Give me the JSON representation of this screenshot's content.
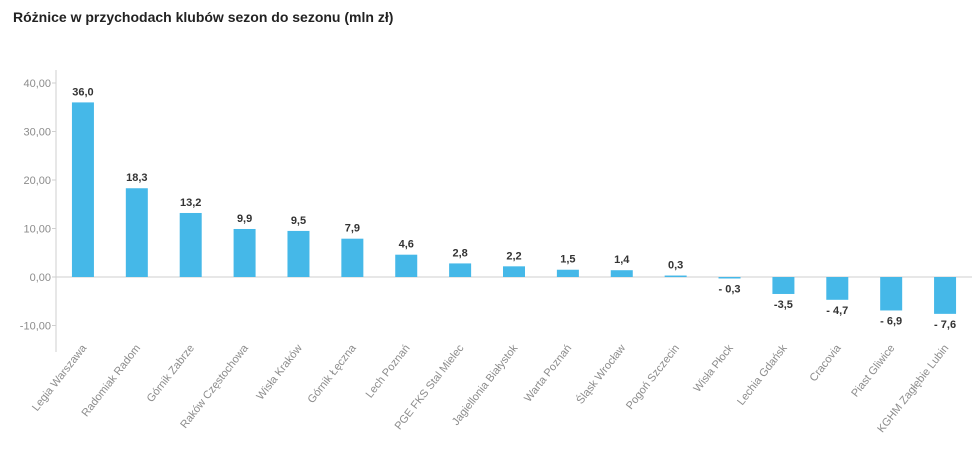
{
  "chart_data": {
    "type": "bar",
    "title": "Różnice w przychodach klubów sezon do sezonu (mln zł)",
    "xlabel": "",
    "ylabel": "",
    "ylim": [
      -14,
      43
    ],
    "yticks": [
      "-10,00",
      "0,00",
      "10,00",
      "20,00",
      "30,00",
      "40,00"
    ],
    "ytick_values": [
      -10,
      0,
      10,
      20,
      30,
      40
    ],
    "grid": false,
    "bar_color": "#45b8e8",
    "categories": [
      "Legia Warszawa",
      "Radomiak Radom",
      "Górnik Zabrze",
      "Raków Częstochowa",
      "Wisła Kraków",
      "Górnik Łęczna",
      "Lech Poznań",
      "PGE FKS Stal Mielec",
      "Jagiellonia Białystok",
      "Warta Poznań",
      "Śląsk Wrocław",
      "Pogoń Szczecin",
      "Wisła Płock",
      "Lechia Gdańsk",
      "Cracovia",
      "Piast Gliwice",
      "KGHM Zagłębie Lubin"
    ],
    "values": [
      36.0,
      18.3,
      13.2,
      9.9,
      9.5,
      7.9,
      4.6,
      2.8,
      2.2,
      1.5,
      1.4,
      0.3,
      -0.3,
      -3.5,
      -4.7,
      -6.9,
      -7.6
    ],
    "value_labels": [
      "36,0",
      "18,3",
      "13,2",
      "9,9",
      "9,5",
      "7,9",
      "4,6",
      "2,8",
      "2,2",
      "1,5",
      "1,4",
      "0,3",
      "- 0,3",
      "-3,5",
      "- 4,7",
      "- 6,9",
      "- 7,6"
    ]
  }
}
